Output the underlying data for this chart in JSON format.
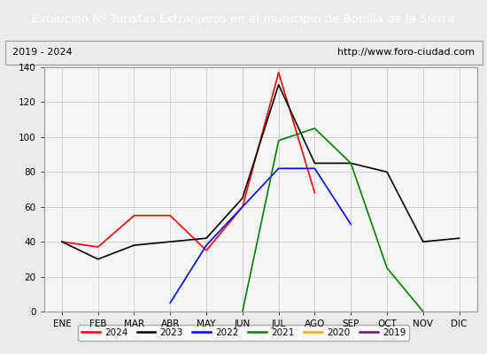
{
  "title": "Evolucion Nº Turistas Extranjeros en el municipio de Bonilla de la Sierra",
  "subtitle_left": "2019 - 2024",
  "subtitle_right": "http://www.foro-ciudad.com",
  "title_bg_color": "#4472c4",
  "title_text_color": "#ffffff",
  "months": [
    "ENE",
    "FEB",
    "MAR",
    "ABR",
    "MAY",
    "JUN",
    "JUL",
    "AGO",
    "SEP",
    "OCT",
    "NOV",
    "DIC"
  ],
  "ylim": [
    0,
    140
  ],
  "yticks": [
    0,
    20,
    40,
    60,
    80,
    100,
    120,
    140
  ],
  "series": {
    "2024": {
      "color": "red",
      "values": [
        40,
        37,
        55,
        55,
        35,
        60,
        137,
        68,
        null,
        null,
        null,
        null
      ]
    },
    "2023": {
      "color": "black",
      "values": [
        40,
        30,
        38,
        40,
        42,
        65,
        130,
        85,
        85,
        80,
        40,
        42
      ]
    },
    "2022": {
      "color": "blue",
      "values": [
        null,
        null,
        null,
        5,
        38,
        60,
        82,
        82,
        50,
        null,
        null,
        null
      ]
    },
    "2021": {
      "color": "green",
      "values": [
        null,
        null,
        null,
        null,
        null,
        0,
        98,
        105,
        85,
        25,
        0,
        null
      ]
    },
    "2020": {
      "color": "orange",
      "values": [
        null,
        null,
        null,
        null,
        null,
        null,
        null,
        null,
        null,
        null,
        null,
        null
      ]
    },
    "2019": {
      "color": "purple",
      "values": [
        null,
        null,
        null,
        null,
        null,
        null,
        null,
        null,
        null,
        null,
        null,
        null
      ]
    }
  },
  "legend_order": [
    "2024",
    "2023",
    "2022",
    "2021",
    "2020",
    "2019"
  ],
  "grid_color": "#cccccc",
  "bg_color": "#ebebeb",
  "plot_bg_color": "#f5f5f5",
  "title_fontsize": 9.5,
  "subtitle_fontsize": 8,
  "tick_fontsize": 7.5,
  "legend_fontsize": 7.5
}
